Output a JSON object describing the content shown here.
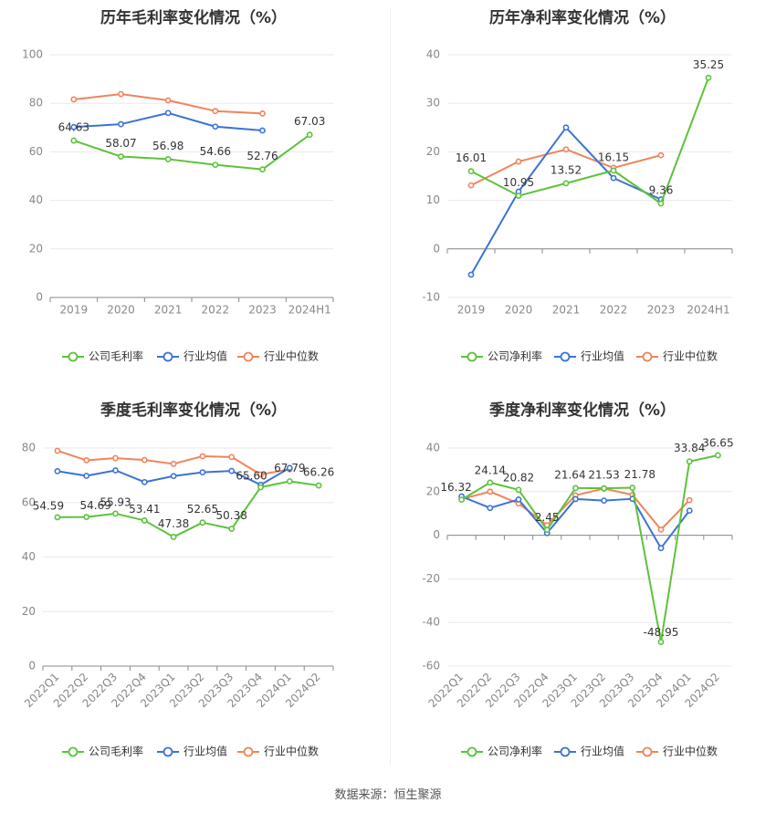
{
  "source_text": "数据来源：恒生聚源",
  "chart_data": [
    {
      "type": "line",
      "title": "历年毛利率变化情况（%）",
      "categories": [
        "2019",
        "2020",
        "2021",
        "2022",
        "2023",
        "2024H1"
      ],
      "ylim": [
        0,
        100
      ],
      "yticks": [
        0,
        20,
        40,
        60,
        80,
        100
      ],
      "grid": true,
      "legend_position": "bottom",
      "series": [
        {
          "name": "公司毛利率",
          "color": "#5cc33a",
          "values": [
            64.63,
            58.07,
            56.98,
            54.66,
            52.76,
            67.03
          ],
          "labels": [
            "64.63",
            "58.07",
            "56.98",
            "54.66",
            "52.76",
            "67.03"
          ]
        },
        {
          "name": "行业均值",
          "color": "#3b73d6",
          "values": [
            70.2,
            71.4,
            76.0,
            70.4,
            68.8,
            null
          ]
        },
        {
          "name": "行业中位数",
          "color": "#f0845a",
          "values": [
            81.6,
            83.8,
            81.2,
            76.8,
            75.8,
            null
          ]
        }
      ]
    },
    {
      "type": "line",
      "title": "历年净利率变化情况（%）",
      "categories": [
        "2019",
        "2020",
        "2021",
        "2022",
        "2023",
        "2024H1"
      ],
      "ylim": [
        -10,
        40
      ],
      "yticks": [
        -10,
        0,
        10,
        20,
        30,
        40
      ],
      "grid": true,
      "legend_position": "bottom",
      "series": [
        {
          "name": "公司净利率",
          "color": "#5cc33a",
          "values": [
            16.01,
            10.95,
            13.52,
            16.15,
            9.36,
            35.25
          ],
          "labels": [
            "16.01",
            "10.95",
            "13.52",
            "16.15",
            "9.36",
            "35.25"
          ]
        },
        {
          "name": "行业均值",
          "color": "#3b73d6",
          "values": [
            -5.3,
            11.8,
            25.0,
            14.6,
            10.2,
            null
          ]
        },
        {
          "name": "行业中位数",
          "color": "#f0845a",
          "values": [
            13.1,
            18.0,
            20.5,
            16.7,
            19.3,
            null
          ]
        }
      ]
    },
    {
      "type": "line",
      "title": "季度毛利率变化情况（%）",
      "categories": [
        "2022Q1",
        "2022Q2",
        "2022Q3",
        "2022Q4",
        "2023Q1",
        "2023Q2",
        "2023Q3",
        "2023Q4",
        "2024Q1",
        "2024Q2"
      ],
      "ylim": [
        0,
        80
      ],
      "yticks": [
        0,
        20,
        40,
        60,
        80
      ],
      "grid": true,
      "legend_position": "bottom",
      "series": [
        {
          "name": "公司毛利率",
          "color": "#5cc33a",
          "values": [
            54.59,
            54.69,
            55.93,
            53.41,
            47.38,
            52.65,
            50.38,
            65.6,
            67.79,
            66.26
          ],
          "labels": [
            "54.59",
            "54.69",
            "55.93",
            "53.41",
            "47.38",
            "52.65",
            "50.38",
            "65.60",
            "67.79",
            "66.26"
          ]
        },
        {
          "name": "行业均值",
          "color": "#3b73d6",
          "values": [
            71.5,
            69.8,
            71.8,
            67.5,
            69.7,
            71.1,
            71.6,
            66.5,
            72.7,
            null
          ]
        },
        {
          "name": "行业中位数",
          "color": "#f0845a",
          "values": [
            79.0,
            75.5,
            76.3,
            75.6,
            74.2,
            77.0,
            76.7,
            70.3,
            72.2,
            null
          ]
        }
      ]
    },
    {
      "type": "line",
      "title": "季度净利率变化情况（%）",
      "categories": [
        "2022Q1",
        "2022Q2",
        "2022Q3",
        "2022Q4",
        "2023Q1",
        "2023Q2",
        "2023Q3",
        "2023Q4",
        "2024Q1",
        "2024Q2"
      ],
      "ylim": [
        -60,
        40
      ],
      "yticks": [
        -60,
        -40,
        -20,
        0,
        20,
        40
      ],
      "grid": true,
      "legend_position": "bottom",
      "series": [
        {
          "name": "公司净利率",
          "color": "#5cc33a",
          "values": [
            16.32,
            24.14,
            20.82,
            2.45,
            21.64,
            21.53,
            21.78,
            -48.95,
            33.84,
            36.65
          ],
          "labels": [
            "16.32",
            "24.14",
            "20.82",
            "2.45",
            "21.64",
            "21.53",
            "21.78",
            "-48.95",
            "33.84",
            "36.65"
          ]
        },
        {
          "name": "行业均值",
          "color": "#3b73d6",
          "values": [
            17.8,
            12.5,
            16.4,
            1.0,
            16.6,
            15.9,
            16.7,
            -5.9,
            11.3,
            null
          ]
        },
        {
          "name": "行业中位数",
          "color": "#f0845a",
          "values": [
            16.6,
            20.0,
            14.6,
            4.6,
            18.3,
            21.4,
            18.5,
            2.6,
            16.1,
            null
          ]
        }
      ]
    }
  ]
}
